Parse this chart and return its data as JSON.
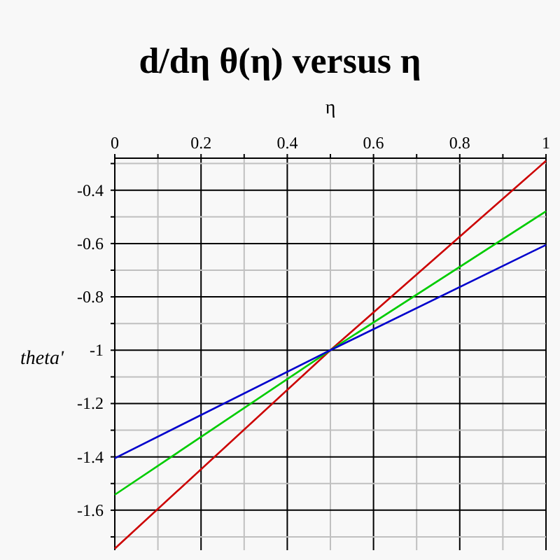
{
  "chart_data": {
    "type": "line",
    "title": "d/dη θ(η) versus η",
    "xlabel": "η",
    "ylabel": "theta'",
    "x": [
      0,
      0.5,
      1
    ],
    "series": [
      {
        "color": "#cc0000",
        "values": [
          -1.744,
          -1.0,
          -0.29
        ]
      },
      {
        "color": "#00cc00",
        "values": [
          -1.542,
          -1.0,
          -0.479
        ]
      },
      {
        "color": "#0000cc",
        "values": [
          -1.405,
          -1.0,
          -0.605
        ]
      }
    ],
    "xlim": [
      0,
      1
    ],
    "xticks": [
      0,
      {
        "value": 0.1,
        "label": null
      },
      0.2,
      {
        "value": 0.3,
        "label": null
      },
      0.4,
      {
        "value": 0.5,
        "label": null
      },
      0.6,
      {
        "value": 0.7,
        "label": null
      },
      0.8,
      {
        "value": 0.9,
        "label": null
      },
      1
    ],
    "ylim": [
      -1.75,
      -0.28
    ],
    "yticks": [
      {
        "value": -0.3,
        "label": null
      },
      -0.4,
      {
        "value": -0.5,
        "label": null
      },
      -0.6,
      {
        "value": -0.7,
        "label": null
      },
      -0.8,
      {
        "value": -0.9,
        "label": null
      },
      -1,
      {
        "value": -1.1,
        "label": null
      },
      -1.2,
      {
        "value": -1.3,
        "label": null
      },
      -1.4,
      {
        "value": -1.5,
        "label": null
      },
      -1.6,
      {
        "value": -1.7,
        "label": null
      }
    ],
    "grid": true,
    "marker": "none",
    "line_style": "solid"
  }
}
